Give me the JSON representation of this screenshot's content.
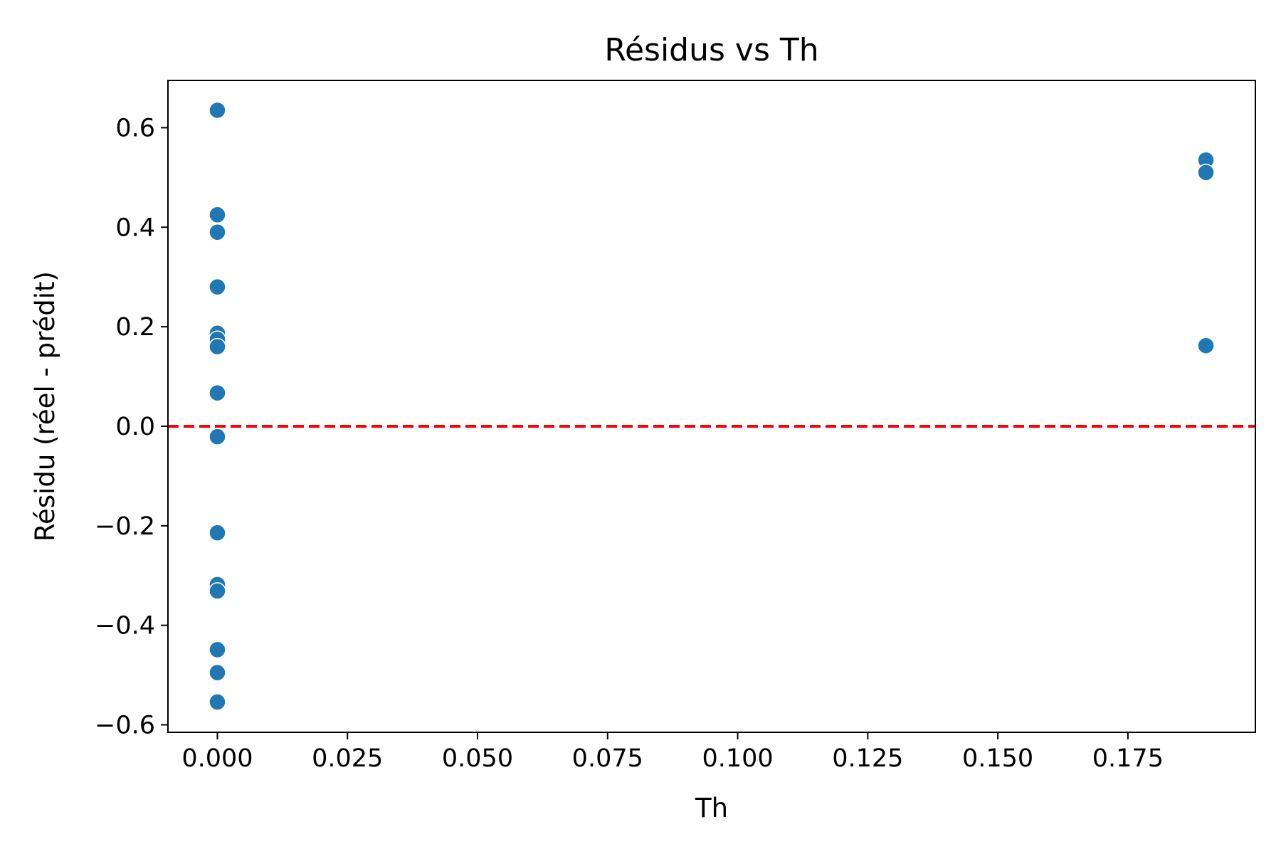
{
  "chart_data": {
    "type": "scatter",
    "title": "Résidus vs Th",
    "xlabel": "Th",
    "ylabel": "Résidu (réel - prédit)",
    "xlim": [
      -0.0095,
      0.1995
    ],
    "ylim": [
      -0.615,
      0.695
    ],
    "xticks": [
      0.0,
      0.025,
      0.05,
      0.075,
      0.1,
      0.125,
      0.15,
      0.175
    ],
    "xtick_labels": [
      "0.000",
      "0.025",
      "0.050",
      "0.075",
      "0.100",
      "0.125",
      "0.150",
      "0.175"
    ],
    "yticks": [
      -0.6,
      -0.4,
      -0.2,
      0.0,
      0.2,
      0.4,
      0.6
    ],
    "ytick_labels": [
      "−0.6",
      "−0.4",
      "−0.2",
      "0.0",
      "0.2",
      "0.4",
      "0.6"
    ],
    "grid": false,
    "marker_color": "#1f77b4",
    "reference_line": {
      "y": 0.0,
      "color": "#ff0000",
      "style": "dashed"
    },
    "points": [
      {
        "x": 0.0,
        "y": 0.635
      },
      {
        "x": 0.0,
        "y": 0.425
      },
      {
        "x": 0.0,
        "y": 0.39
      },
      {
        "x": 0.0,
        "y": 0.28
      },
      {
        "x": 0.0,
        "y": 0.187
      },
      {
        "x": 0.0,
        "y": 0.175
      },
      {
        "x": 0.0,
        "y": 0.16
      },
      {
        "x": 0.0,
        "y": 0.067
      },
      {
        "x": 0.0,
        "y": -0.021
      },
      {
        "x": 0.0,
        "y": -0.214
      },
      {
        "x": 0.0,
        "y": -0.318
      },
      {
        "x": 0.0,
        "y": -0.331
      },
      {
        "x": 0.0,
        "y": -0.449
      },
      {
        "x": 0.0,
        "y": -0.495
      },
      {
        "x": 0.0,
        "y": -0.554
      },
      {
        "x": 0.19,
        "y": 0.535
      },
      {
        "x": 0.19,
        "y": 0.51
      },
      {
        "x": 0.19,
        "y": 0.162
      }
    ]
  }
}
